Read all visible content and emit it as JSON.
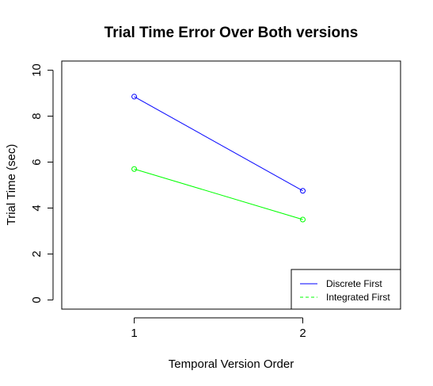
{
  "chart_data": {
    "type": "line",
    "title": "Trial Time Error Over Both versions",
    "xlabel": "Temporal Version Order",
    "ylabel": "Trial Time (sec)",
    "x": [
      1,
      2
    ],
    "x_ticks": [
      "1",
      "2"
    ],
    "y_ticks": [
      "0",
      "2",
      "4",
      "6",
      "8",
      "10"
    ],
    "xlim": [
      0.57,
      2.58
    ],
    "ylim": [
      -0.4,
      10.4
    ],
    "grid": false,
    "legend_position": "bottom-right",
    "series": [
      {
        "name": "Discrete First",
        "values": [
          8.85,
          4.75
        ],
        "color": "#0000ff",
        "line_style": "solid"
      },
      {
        "name": "Integrated First",
        "values": [
          5.7,
          3.5
        ],
        "color": "#00ff00",
        "line_style": "dashed"
      }
    ]
  }
}
